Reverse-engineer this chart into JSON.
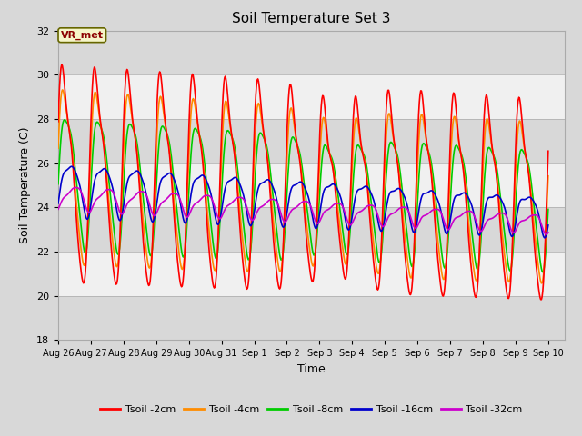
{
  "title": "Soil Temperature Set 3",
  "xlabel": "Time",
  "ylabel": "Soil Temperature (C)",
  "ylim": [
    18,
    32
  ],
  "xlim_days": [
    0,
    15.5
  ],
  "tick_labels": [
    "Aug 26",
    "Aug 27",
    "Aug 28",
    "Aug 29",
    "Aug 30",
    "Aug 31",
    "Sep 1",
    "Sep 2",
    "Sep 3",
    "Sep 4",
    "Sep 5",
    "Sep 6",
    "Sep 7",
    "Sep 8",
    "Sep 9",
    "Sep 10"
  ],
  "tick_positions": [
    0,
    1,
    2,
    3,
    4,
    5,
    6,
    7,
    8,
    9,
    10,
    11,
    12,
    13,
    14,
    15
  ],
  "yticks": [
    18,
    20,
    22,
    24,
    26,
    28,
    30,
    32
  ],
  "colors": {
    "Tsoil -2cm": "#FF0000",
    "Tsoil -4cm": "#FF8C00",
    "Tsoil -8cm": "#00CC00",
    "Tsoil -16cm": "#0000CC",
    "Tsoil -32cm": "#CC00CC"
  },
  "annotation_text": "VR_met",
  "background_color": "#D8D8D8",
  "band_color": "#F0F0F0",
  "title_fontsize": 11,
  "tick_fontsize": 7,
  "label_fontsize": 9,
  "legend_fontsize": 8
}
